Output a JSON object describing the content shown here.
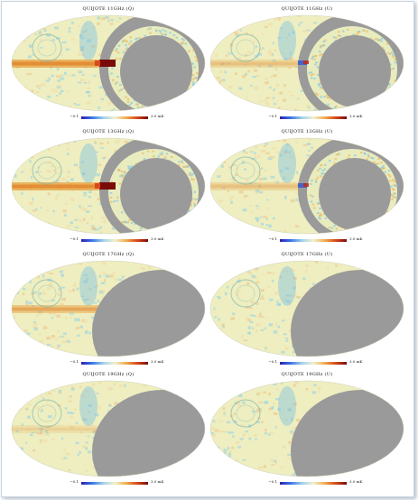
{
  "panels": [
    {
      "title": "QUIJOTE 11GHz (Q)",
      "cbar_min": "−0.1",
      "cbar_max": "3.0 mK",
      "coverage": "partial-ring"
    },
    {
      "title": "QUIJOTE 11GHz (U)",
      "cbar_min": "−0.1",
      "cbar_max": "3.0 mK",
      "coverage": "partial-ring"
    },
    {
      "title": "QUIJOTE 13GHz (Q)",
      "cbar_min": "−0.1",
      "cbar_max": "3.0 mK",
      "coverage": "partial-ring"
    },
    {
      "title": "QUIJOTE 13GHz (U)",
      "cbar_min": "−0.1",
      "cbar_max": "3.0 mK",
      "coverage": "partial-ring"
    },
    {
      "title": "QUIJOTE 17GHz (Q)",
      "cbar_min": "−0.1",
      "cbar_max": "3.0 mK",
      "coverage": "half"
    },
    {
      "title": "QUIJOTE 17GHz (U)",
      "cbar_min": "−0.1",
      "cbar_max": "3.0 mK",
      "coverage": "half"
    },
    {
      "title": "QUIJOTE 19GHz (Q)",
      "cbar_min": "−0.1",
      "cbar_max": "3.0 mK",
      "coverage": "half"
    },
    {
      "title": "QUIJOTE 19GHz (U)",
      "cbar_min": "−0.1",
      "cbar_max": "3.0 mK",
      "coverage": "half"
    }
  ],
  "colors": {
    "sky_base": "#eeeec0",
    "masked": "#9a9a9a",
    "plane_warm": "#e8a040",
    "plane_hot": "#7a0a0a",
    "cool": "#8fcfe6"
  }
}
